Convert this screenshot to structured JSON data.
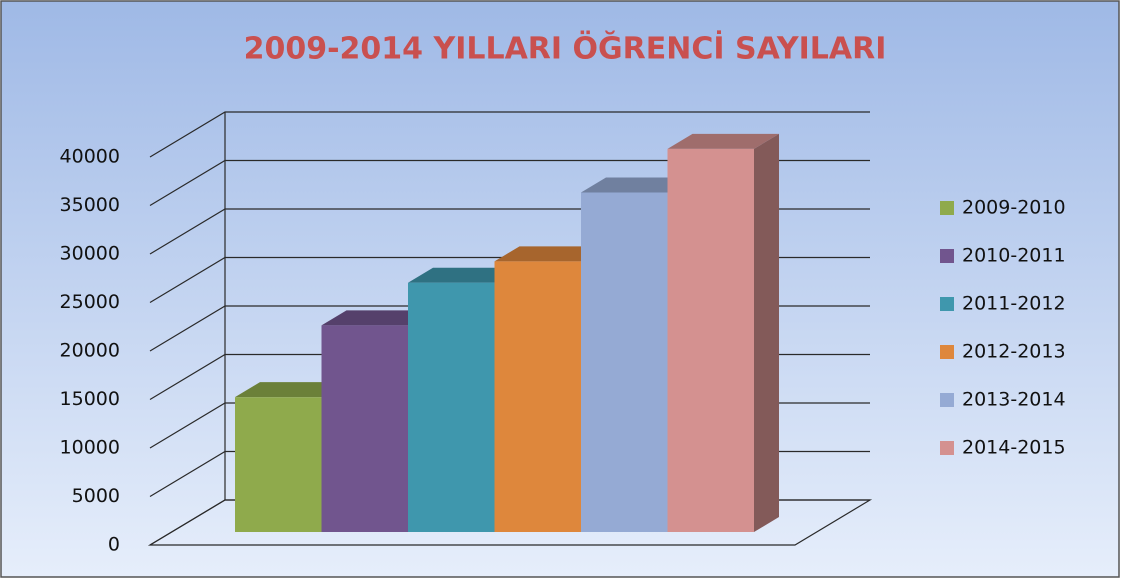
{
  "chart_data": {
    "type": "bar3d",
    "title": "2009-2014 YILLARI ÖĞRENCİ SAYILARI",
    "series": [
      {
        "name": "2009-2010",
        "color": "#8faa4c",
        "values": [
          13900
        ]
      },
      {
        "name": "2010-2011",
        "color": "#71558e",
        "values": [
          21300
        ]
      },
      {
        "name": "2011-2012",
        "color": "#3f97ad",
        "values": [
          25700
        ]
      },
      {
        "name": "2012-2013",
        "color": "#de873c",
        "values": [
          27900
        ]
      },
      {
        "name": "2013-2014",
        "color": "#95aad4",
        "values": [
          35000
        ]
      },
      {
        "name": "2014-2015",
        "color": "#d49190",
        "values": [
          39500
        ]
      }
    ],
    "ylim": [
      0,
      40000
    ],
    "yticks": [
      0,
      5000,
      10000,
      15000,
      20000,
      25000,
      30000,
      35000,
      40000
    ],
    "grid": true,
    "legend": "right"
  }
}
